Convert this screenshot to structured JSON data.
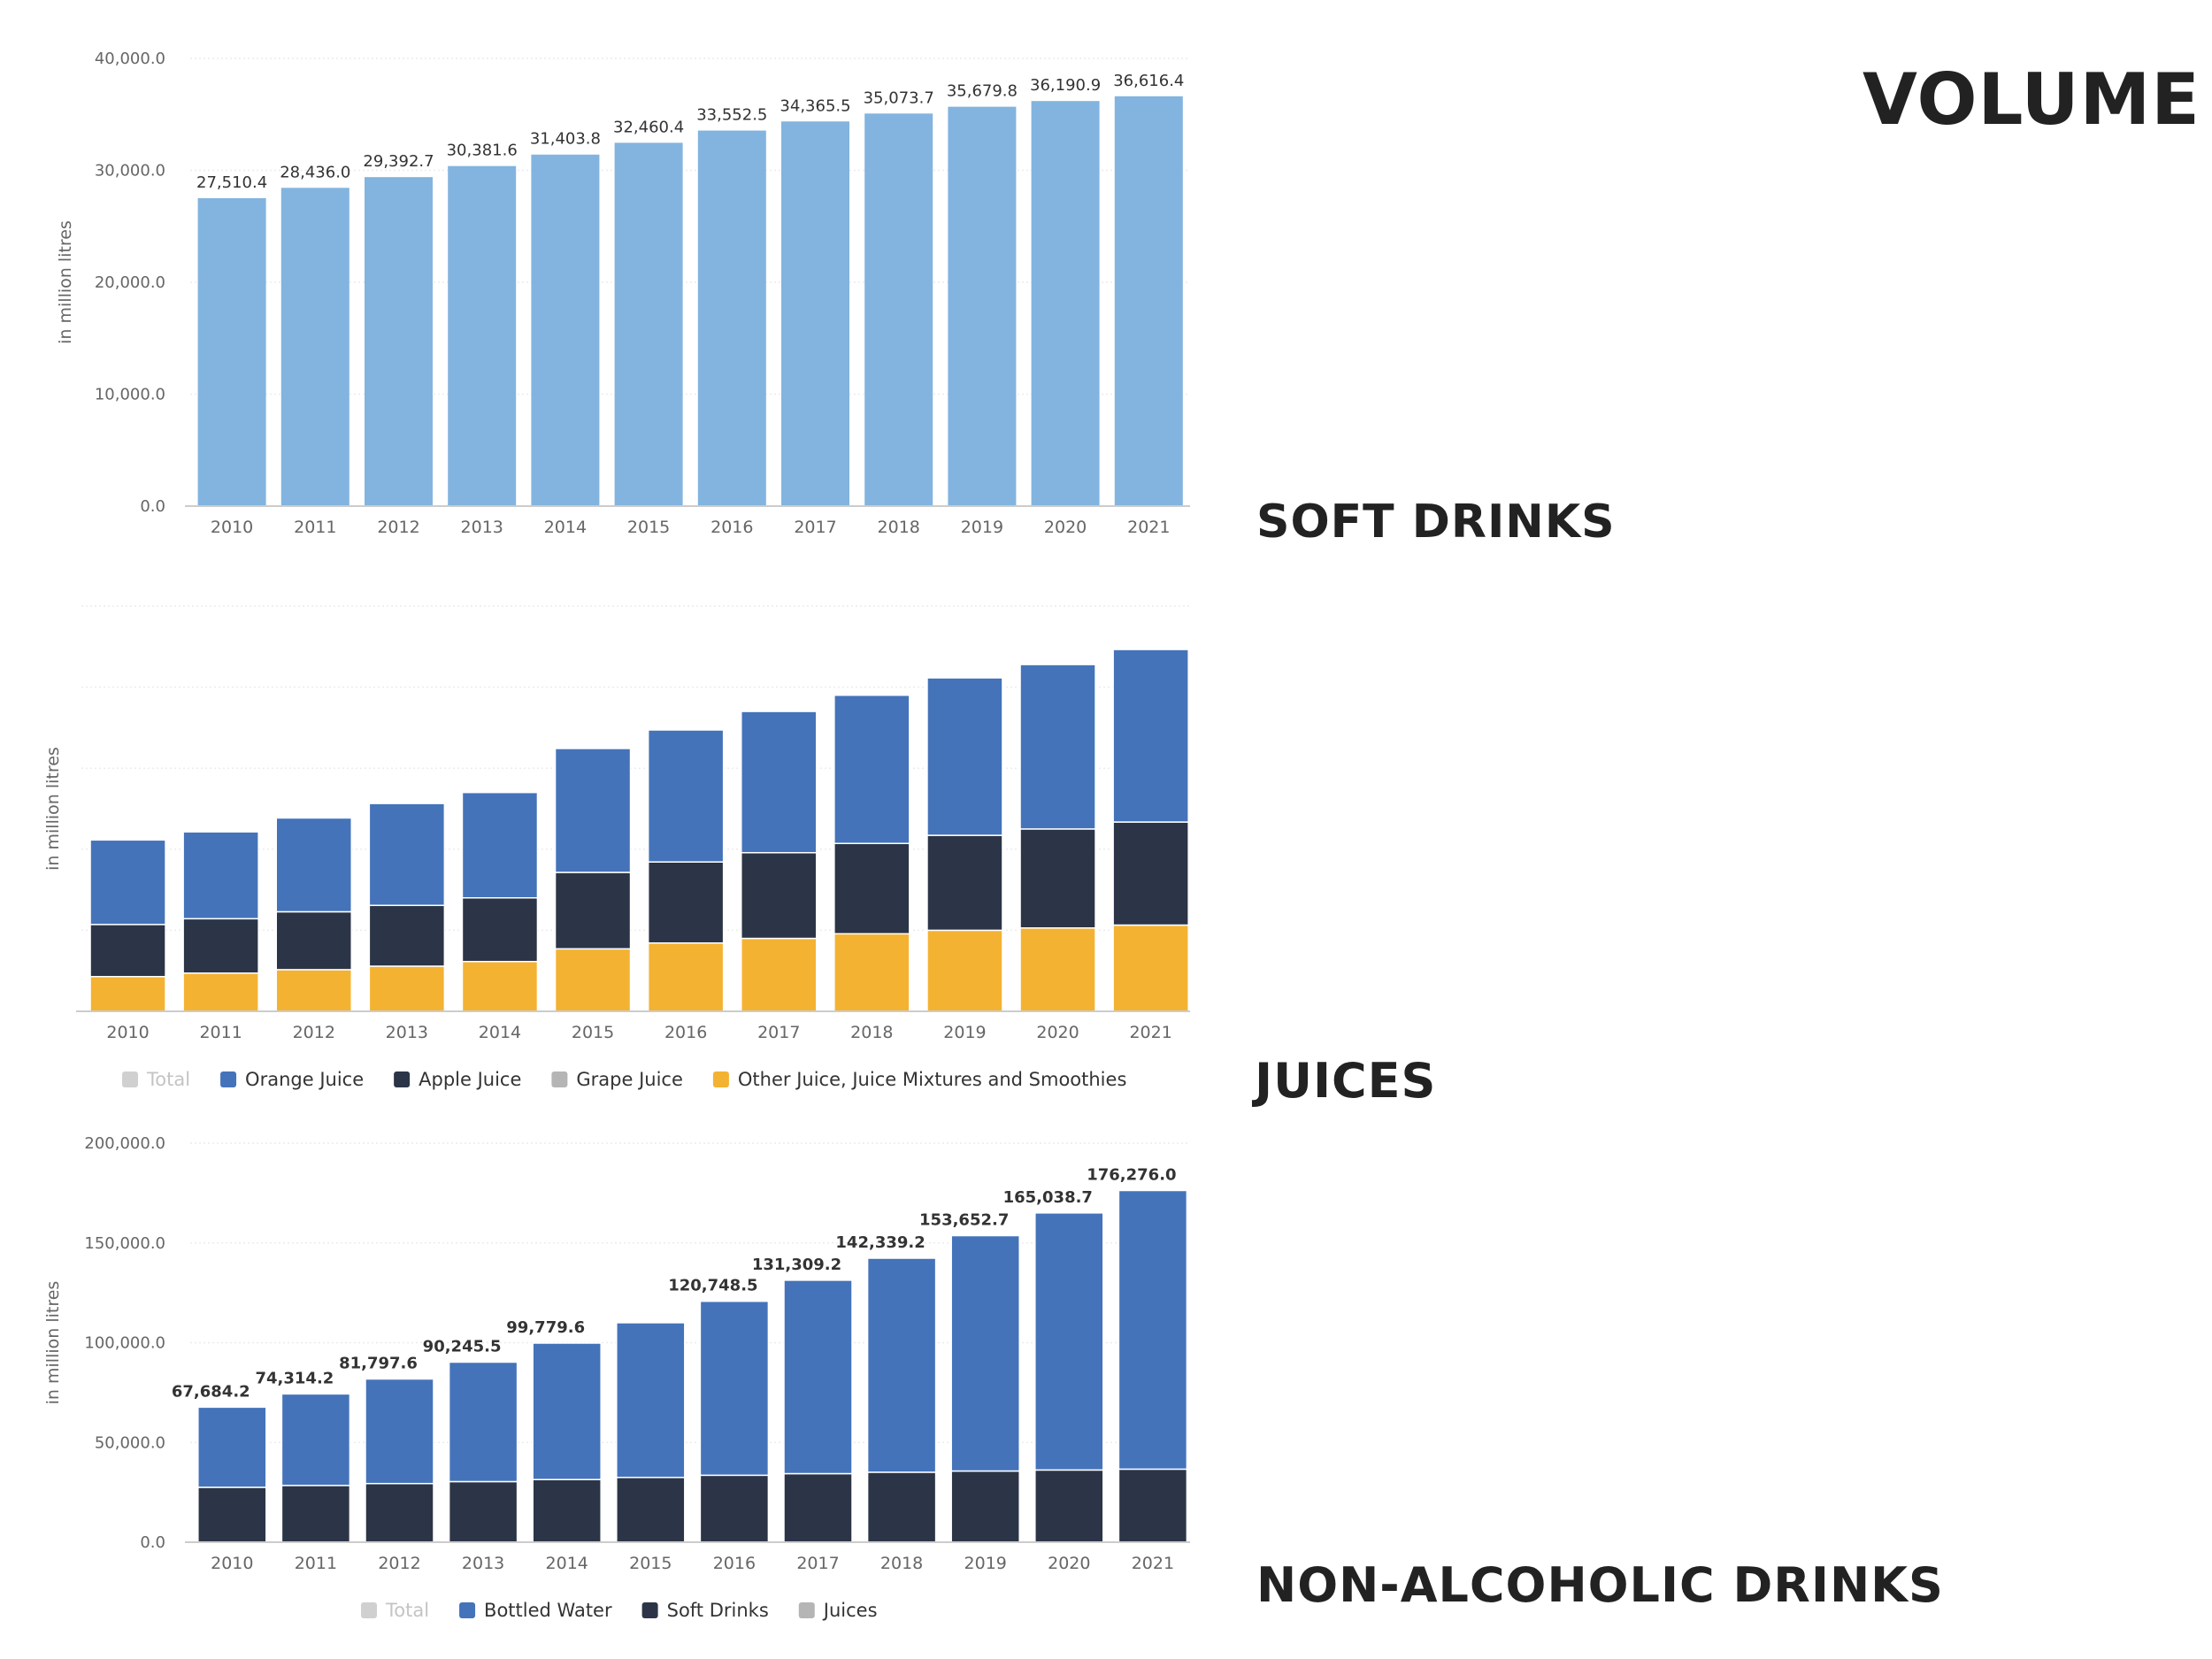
{
  "page": {
    "title": "VOLUME",
    "section_labels": [
      "SOFT DRINKS",
      "JUICES",
      "NON-ALCOHOLIC DRINKS"
    ]
  },
  "colors": {
    "soft_drinks_bar": "#82b4df",
    "orange_juice": "#4473ba",
    "apple_juice": "#2c3547",
    "grape_juice": "#b5b5b5",
    "other_juice": "#f4b232",
    "bottled_water": "#4473ba",
    "soft_drinks_series": "#2c3547",
    "juices_series": "#f4b232",
    "total_legend": "#d0d0d0",
    "axis_text": "#666666",
    "label_text": "#333333"
  },
  "chart_data": [
    {
      "id": "soft-drinks",
      "type": "bar",
      "title": "SOFT DRINKS",
      "categories": [
        "2010",
        "2011",
        "2012",
        "2013",
        "2014",
        "2015",
        "2016",
        "2017",
        "2018",
        "2019",
        "2020",
        "2021"
      ],
      "values": [
        27510.4,
        28436.0,
        29392.7,
        30381.6,
        31403.8,
        32460.4,
        33552.5,
        34365.5,
        35073.7,
        35679.8,
        36190.9,
        36616.4
      ],
      "data_labels": [
        "27,510.4",
        "28,436.0",
        "29,392.7",
        "30,381.6",
        "31,403.8",
        "32,460.4",
        "33,552.5",
        "34,365.5",
        "35,073.7",
        "35,679.8",
        "36,190.9",
        "36,616.4"
      ],
      "ylabel": "in million litres",
      "xlabel": "",
      "ylim": [
        0,
        40000
      ],
      "yticks": [
        0,
        10000,
        20000,
        30000,
        40000
      ],
      "ytick_labels": [
        "0.0",
        "10,000.0",
        "20,000.0",
        "30,000.0",
        "40,000.0"
      ],
      "legend": []
    },
    {
      "id": "juices",
      "type": "bar",
      "stacked": true,
      "title": "JUICES",
      "categories": [
        "2010",
        "2011",
        "2012",
        "2013",
        "2014",
        "2015",
        "2016",
        "2017",
        "2018",
        "2019",
        "2020",
        "2021"
      ],
      "series": [
        {
          "name": "Other Juice, Juice Mixtures and Smoothies",
          "color_key": "other_juice",
          "values": [
            60,
            66,
            72,
            78,
            86,
            108,
            118,
            126,
            134,
            140,
            144,
            149
          ]
        },
        {
          "name": "Apple Juice",
          "color_key": "apple_juice",
          "values": [
            90,
            94,
            100,
            105,
            110,
            132,
            140,
            148,
            156,
            164,
            171,
            178
          ]
        },
        {
          "name": "Orange Juice",
          "color_key": "orange_juice",
          "values": [
            146,
            150,
            162,
            176,
            182,
            214,
            228,
            244,
            256,
            272,
            284,
            298
          ]
        }
      ],
      "ylabel": "in million litres",
      "xlabel": "",
      "ylim": [
        0,
        700
      ],
      "yticks": [],
      "ytick_labels": [],
      "legend": [
        {
          "label": "Total",
          "color_key": "total_legend",
          "muted": true
        },
        {
          "label": "Orange Juice",
          "color_key": "orange_juice"
        },
        {
          "label": "Apple Juice",
          "color_key": "apple_juice"
        },
        {
          "label": "Grape Juice",
          "color_key": "grape_juice"
        },
        {
          "label": "Other Juice, Juice Mixtures and Smoothies",
          "color_key": "other_juice"
        }
      ]
    },
    {
      "id": "non-alcoholic",
      "type": "bar",
      "stacked": true,
      "title": "NON-ALCOHOLIC DRINKS",
      "categories": [
        "2010",
        "2011",
        "2012",
        "2013",
        "2014",
        "2015",
        "2016",
        "2017",
        "2018",
        "2019",
        "2020",
        "2021"
      ],
      "series": [
        {
          "name": "Soft Drinks",
          "color_key": "soft_drinks_series",
          "values": [
            27510.4,
            28436.0,
            29392.7,
            30381.6,
            31403.8,
            32460.4,
            33552.5,
            34365.5,
            35073.7,
            35679.8,
            36190.9,
            36616.4
          ]
        },
        {
          "name": "Bottled Water",
          "color_key": "bottled_water",
          "values": [
            40173.8,
            45878.2,
            52404.9,
            59863.9,
            68375.8,
            77539.6,
            87195.9,
            96943.7,
            107265.5,
            117972.9,
            128847.8,
            139659.6
          ]
        }
      ],
      "totals": [
        67684.2,
        74314.2,
        81797.6,
        90245.5,
        99779.6,
        110000.0,
        120748.5,
        131309.2,
        142339.2,
        153652.7,
        165038.7,
        176276.0
      ],
      "total_labels": [
        "67,684.2",
        "74,314.2",
        "81,797.6",
        "90,245.5",
        "99,779.6",
        "",
        "120,748.5",
        "131,309.2",
        "142,339.2",
        "153,652.7",
        "165,038.7",
        "176,276.0"
      ],
      "ylabel": "in million litres",
      "xlabel": "",
      "ylim": [
        0,
        200000
      ],
      "yticks": [
        0,
        50000,
        100000,
        150000,
        200000
      ],
      "ytick_labels": [
        "0.0",
        "50,000.0",
        "100,000.0",
        "150,000.0",
        "200,000.0"
      ],
      "legend": [
        {
          "label": "Total",
          "color_key": "total_legend",
          "muted": true
        },
        {
          "label": "Bottled Water",
          "color_key": "bottled_water"
        },
        {
          "label": "Soft Drinks",
          "color_key": "soft_drinks_series"
        },
        {
          "label": "Juices",
          "color_key": "grape_juice"
        }
      ]
    }
  ]
}
